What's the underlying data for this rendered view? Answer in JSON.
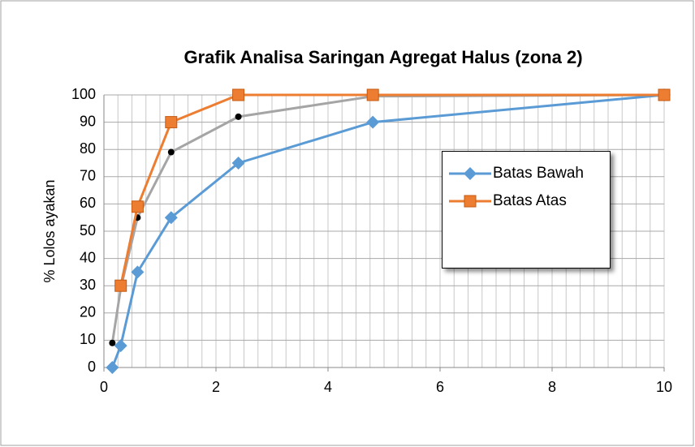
{
  "chart_data": {
    "type": "line",
    "title": "Grafik Analisa Saringan Agregat Halus  (zona 2)",
    "ylabel": "% Lolos ayakan",
    "series": [
      {
        "name": "Batas Bawah",
        "color": "#5b9bd5",
        "marker": "diamond",
        "x": [
          0.15,
          0.3,
          0.6,
          1.2,
          2.4,
          4.8,
          10
        ],
        "values": [
          0,
          8,
          35,
          55,
          75,
          90,
          100
        ]
      },
      {
        "name": "Batas Atas",
        "color": "#ed7d31",
        "marker": "square",
        "x": [
          0.3,
          0.6,
          1.2,
          2.4,
          4.8,
          10
        ],
        "values": [
          30,
          59,
          90,
          100,
          100,
          100
        ]
      },
      {
        "color": "#a5a5a5",
        "marker": "dot",
        "x": [
          0.15,
          0.3,
          0.6,
          1.2,
          2.4,
          4.8,
          10
        ],
        "values": [
          9,
          29,
          55,
          79,
          92,
          99.5,
          100
        ]
      }
    ],
    "xlim": [
      0,
      10
    ],
    "xticks": [
      0,
      2,
      4,
      6,
      8,
      10
    ],
    "xgrid": [
      0,
      0.25,
      0.5,
      0.75,
      1,
      1.25,
      1.5,
      1.75,
      2,
      2.25,
      2.5,
      2.75,
      3,
      3.25,
      3.5,
      3.75,
      4,
      4.25,
      4.5,
      4.75,
      5,
      5.25,
      5.5,
      5.75,
      6,
      6.25,
      6.5,
      6.75,
      7,
      7.25,
      7.5,
      7.75,
      8,
      8.25,
      8.5,
      8.75,
      9,
      9.25,
      9.5,
      9.75,
      10
    ],
    "ylim": [
      0,
      100
    ],
    "yticks": [
      0,
      10,
      20,
      30,
      40,
      50,
      60,
      70,
      80,
      90,
      100
    ],
    "grid": true,
    "legend": "right"
  }
}
